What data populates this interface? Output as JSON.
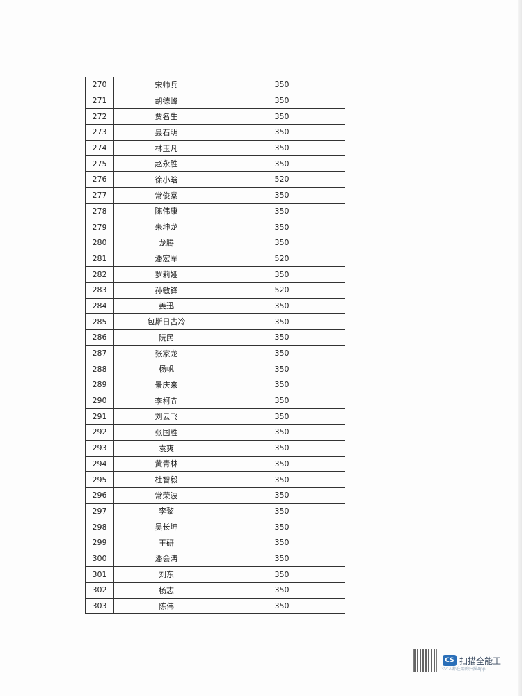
{
  "table": {
    "rows": [
      [
        "270",
        "宋帅兵",
        "350"
      ],
      [
        "271",
        "胡德峰",
        "350"
      ],
      [
        "272",
        "贾名生",
        "350"
      ],
      [
        "273",
        "聂石明",
        "350"
      ],
      [
        "274",
        "林玉凡",
        "350"
      ],
      [
        "275",
        "赵永胜",
        "350"
      ],
      [
        "276",
        "徐小晗",
        "520"
      ],
      [
        "277",
        "常俊棠",
        "350"
      ],
      [
        "278",
        "陈伟康",
        "350"
      ],
      [
        "279",
        "朱坤龙",
        "350"
      ],
      [
        "280",
        "龙腾",
        "350"
      ],
      [
        "281",
        "潘宏军",
        "520"
      ],
      [
        "282",
        "罗莉娅",
        "350"
      ],
      [
        "283",
        "孙敏锋",
        "520"
      ],
      [
        "284",
        "姜迅",
        "350"
      ],
      [
        "285",
        "包斯日古冷",
        "350"
      ],
      [
        "286",
        "阮民",
        "350"
      ],
      [
        "287",
        "张家龙",
        "350"
      ],
      [
        "288",
        "杨帆",
        "350"
      ],
      [
        "289",
        "景庆来",
        "350"
      ],
      [
        "290",
        "李柯垚",
        "350"
      ],
      [
        "291",
        "刘云飞",
        "350"
      ],
      [
        "292",
        "张国胜",
        "350"
      ],
      [
        "293",
        "袁爽",
        "350"
      ],
      [
        "294",
        "黄青林",
        "350"
      ],
      [
        "295",
        "杜智毅",
        "350"
      ],
      [
        "296",
        "常荣波",
        "350"
      ],
      [
        "297",
        "李黎",
        "350"
      ],
      [
        "298",
        "吴长坤",
        "350"
      ],
      [
        "299",
        "王研",
        "350"
      ],
      [
        "300",
        "潘会涛",
        "350"
      ],
      [
        "301",
        "刘东",
        "350"
      ],
      [
        "302",
        "杨志",
        "350"
      ],
      [
        "303",
        "陈伟",
        "350"
      ]
    ]
  },
  "watermark": {
    "logo": "CS",
    "brand": "扫描全能王",
    "tagline": "3亿人都在用的扫描App",
    "icon": "qr-code-icon",
    "logo_color": "#2a6fb8"
  }
}
